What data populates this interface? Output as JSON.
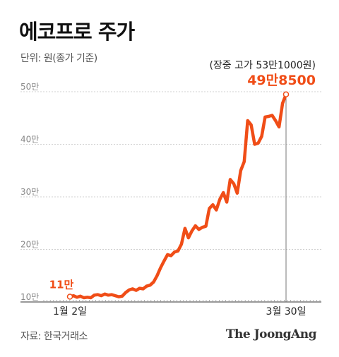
{
  "title": "에코프로 주가",
  "unit_note": "단위: 원(종가 기준)",
  "source_note": "자료: 한국거래소",
  "brand": "The JoongAng",
  "chart_data": {
    "type": "line",
    "title": "에코프로 주가",
    "y_ticks": [
      {
        "value": 100000,
        "label": "10만"
      },
      {
        "value": 200000,
        "label": "20만"
      },
      {
        "value": 300000,
        "label": "30만"
      },
      {
        "value": 400000,
        "label": "40만"
      },
      {
        "value": 500000,
        "label": "50만"
      }
    ],
    "ylim": [
      100000,
      520000
    ],
    "grid": true,
    "x_labels": [
      "1월 2일",
      "3월 30일"
    ],
    "series": [
      {
        "color": "#f04d17",
        "values": [
          110000,
          112000,
          109000,
          111000,
          108000,
          109000,
          108000,
          113000,
          114000,
          112000,
          115000,
          113000,
          114000,
          112000,
          110000,
          111000,
          118000,
          123000,
          125000,
          122000,
          126000,
          125000,
          130000,
          132000,
          138000,
          150000,
          165000,
          178000,
          190000,
          188000,
          195000,
          197000,
          210000,
          240000,
          222000,
          235000,
          245000,
          238000,
          242000,
          244000,
          278000,
          285000,
          275000,
          295000,
          308000,
          290000,
          333000,
          325000,
          307000,
          350000,
          367000,
          445000,
          437000,
          400000,
          402000,
          415000,
          452000,
          453000,
          455000,
          445000,
          433000,
          478000,
          495000
        ]
      }
    ],
    "annotations": {
      "start_value": "11만",
      "intraday_high": "(장중 고가 53만1000원)",
      "end_value": "49만8500"
    }
  }
}
